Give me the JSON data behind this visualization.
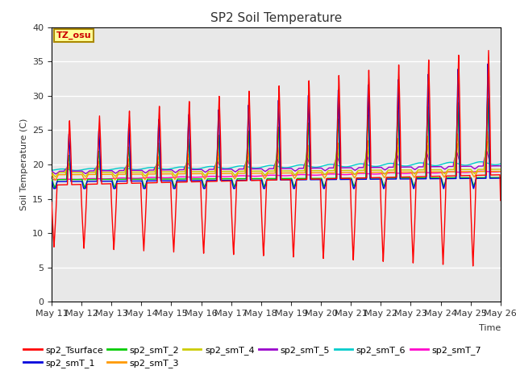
{
  "title": "SP2 Soil Temperature",
  "xlabel": "Time",
  "ylabel": "Soil Temperature (C)",
  "ylim": [
    0,
    40
  ],
  "yticks": [
    0,
    5,
    10,
    15,
    20,
    25,
    30,
    35,
    40
  ],
  "date_labels": [
    "May 11",
    "May 12",
    "May 13",
    "May 14",
    "May 15",
    "May 16",
    "May 17",
    "May 18",
    "May 19",
    "May 20",
    "May 21",
    "May 22",
    "May 23",
    "May 24",
    "May 25",
    "May 26"
  ],
  "annotation_text": "TZ_osu",
  "annotation_color": "#cc0000",
  "annotation_bg": "#ffff99",
  "annotation_border": "#aa8800",
  "series_colors": {
    "sp2_Tsurface": "#ff0000",
    "sp2_smT_1": "#0000dd",
    "sp2_smT_2": "#00cc00",
    "sp2_smT_3": "#ff9900",
    "sp2_smT_4": "#cccc00",
    "sp2_smT_5": "#9900cc",
    "sp2_smT_6": "#00cccc",
    "sp2_smT_7": "#ff00cc"
  },
  "bg_color": "#e8e8e8",
  "fig_bg": "#ffffff",
  "n_days": 15,
  "pts_per_day": 288
}
